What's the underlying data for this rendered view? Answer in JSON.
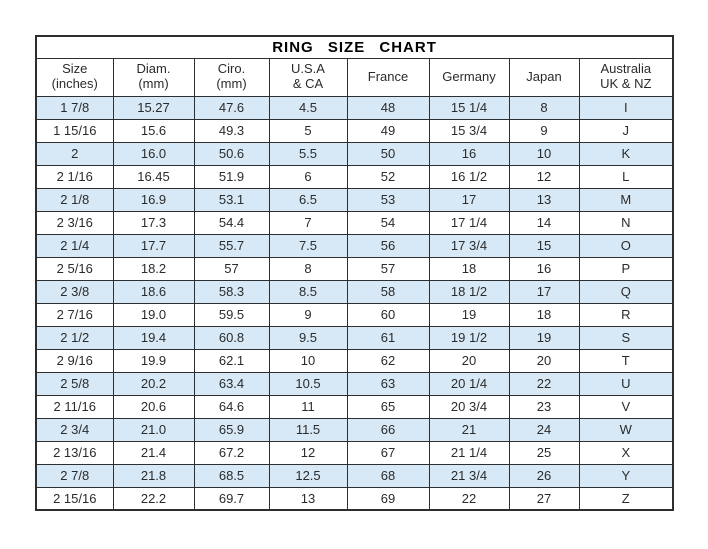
{
  "title": "RING SIZE CHART",
  "colors": {
    "page_bg": "#ffffff",
    "row_highlight": "#d7e9f7",
    "border": "#2e2e2e",
    "text": "#2b2b2b"
  },
  "table": {
    "header_cells": [
      {
        "line1": "Size",
        "line2": "(inches)"
      },
      {
        "line1": "Diam.",
        "line2": "(mm)"
      },
      {
        "line1": "Ciro.",
        "line2": "(mm)"
      },
      {
        "line1": "U.S.A",
        "line2": "& CA"
      },
      {
        "line1": "France",
        "line2": ""
      },
      {
        "line1": "Germany",
        "line2": ""
      },
      {
        "line1": "Japan",
        "line2": ""
      },
      {
        "line1": "Australia",
        "line2": "UK & NZ"
      }
    ],
    "rows": [
      [
        "1 7/8",
        "15.27",
        "47.6",
        "4.5",
        "48",
        "15 1/4",
        "8",
        "I"
      ],
      [
        "1 15/16",
        "15.6",
        "49.3",
        "5",
        "49",
        "15 3/4",
        "9",
        "J"
      ],
      [
        "2",
        "16.0",
        "50.6",
        "5.5",
        "50",
        "16",
        "10",
        "K"
      ],
      [
        "2 1/16",
        "16.45",
        "51.9",
        "6",
        "52",
        "16 1/2",
        "12",
        "L"
      ],
      [
        "2 1/8",
        "16.9",
        "53.1",
        "6.5",
        "53",
        "17",
        "13",
        "M"
      ],
      [
        "2 3/16",
        "17.3",
        "54.4",
        "7",
        "54",
        "17 1/4",
        "14",
        "N"
      ],
      [
        "2 1/4",
        "17.7",
        "55.7",
        "7.5",
        "56",
        "17 3/4",
        "15",
        "O"
      ],
      [
        "2 5/16",
        "18.2",
        "57",
        "8",
        "57",
        "18",
        "16",
        "P"
      ],
      [
        "2 3/8",
        "18.6",
        "58.3",
        "8.5",
        "58",
        "18 1/2",
        "17",
        "Q"
      ],
      [
        "2 7/16",
        "19.0",
        "59.5",
        "9",
        "60",
        "19",
        "18",
        "R"
      ],
      [
        "2 1/2",
        "19.4",
        "60.8",
        "9.5",
        "61",
        "19 1/2",
        "19",
        "S"
      ],
      [
        "2 9/16",
        "19.9",
        "62.1",
        "10",
        "62",
        "20",
        "20",
        "T"
      ],
      [
        "2 5/8",
        "20.2",
        "63.4",
        "10.5",
        "63",
        "20 1/4",
        "22",
        "U"
      ],
      [
        "2 11/16",
        "20.6",
        "64.6",
        "11",
        "65",
        "20 3/4",
        "23",
        "V"
      ],
      [
        "2 3/4",
        "21.0",
        "65.9",
        "11.5",
        "66",
        "21",
        "24",
        "W"
      ],
      [
        "2 13/16",
        "21.4",
        "67.2",
        "12",
        "67",
        "21 1/4",
        "25",
        "X"
      ],
      [
        "2 7/8",
        "21.8",
        "68.5",
        "12.5",
        "68",
        "21 3/4",
        "26",
        "Y"
      ],
      [
        "2 15/16",
        "22.2",
        "69.7",
        "13",
        "69",
        "22",
        "27",
        "Z"
      ]
    ]
  },
  "chart_data": {
    "type": "table",
    "title": "RING SIZE CHART",
    "columns": [
      "Size (inches)",
      "Diam. (mm)",
      "Ciro. (mm)",
      "U.S.A & CA",
      "France",
      "Germany",
      "Japan",
      "Australia UK & NZ"
    ],
    "rows": [
      [
        "1 7/8",
        "15.27",
        "47.6",
        "4.5",
        "48",
        "15 1/4",
        "8",
        "I"
      ],
      [
        "1 15/16",
        "15.6",
        "49.3",
        "5",
        "49",
        "15 3/4",
        "9",
        "J"
      ],
      [
        "2",
        "16.0",
        "50.6",
        "5.5",
        "50",
        "16",
        "10",
        "K"
      ],
      [
        "2 1/16",
        "16.45",
        "51.9",
        "6",
        "52",
        "16 1/2",
        "12",
        "L"
      ],
      [
        "2 1/8",
        "16.9",
        "53.1",
        "6.5",
        "53",
        "17",
        "13",
        "M"
      ],
      [
        "2 3/16",
        "17.3",
        "54.4",
        "7",
        "54",
        "17 1/4",
        "14",
        "N"
      ],
      [
        "2 1/4",
        "17.7",
        "55.7",
        "7.5",
        "56",
        "17 3/4",
        "15",
        "O"
      ],
      [
        "2 5/16",
        "18.2",
        "57",
        "8",
        "57",
        "18",
        "16",
        "P"
      ],
      [
        "2 3/8",
        "18.6",
        "58.3",
        "8.5",
        "58",
        "18 1/2",
        "17",
        "Q"
      ],
      [
        "2 7/16",
        "19.0",
        "59.5",
        "9",
        "60",
        "19",
        "18",
        "R"
      ],
      [
        "2 1/2",
        "19.4",
        "60.8",
        "9.5",
        "61",
        "19 1/2",
        "19",
        "S"
      ],
      [
        "2 9/16",
        "19.9",
        "62.1",
        "10",
        "62",
        "20",
        "20",
        "T"
      ],
      [
        "2 5/8",
        "20.2",
        "63.4",
        "10.5",
        "63",
        "20 1/4",
        "22",
        "U"
      ],
      [
        "2 11/16",
        "20.6",
        "64.6",
        "11",
        "65",
        "20 3/4",
        "23",
        "V"
      ],
      [
        "2 3/4",
        "21.0",
        "65.9",
        "11.5",
        "66",
        "21",
        "24",
        "W"
      ],
      [
        "2 13/16",
        "21.4",
        "67.2",
        "12",
        "67",
        "21 1/4",
        "25",
        "X"
      ],
      [
        "2 7/8",
        "21.8",
        "68.5",
        "12.5",
        "68",
        "21 3/4",
        "26",
        "Y"
      ],
      [
        "2 15/16",
        "22.2",
        "69.7",
        "13",
        "69",
        "22",
        "27",
        "Z"
      ]
    ],
    "layout_hints": {
      "striped_rows": "odd rows highlighted light blue",
      "grid": true,
      "title_position": "top, spanning all columns"
    }
  }
}
